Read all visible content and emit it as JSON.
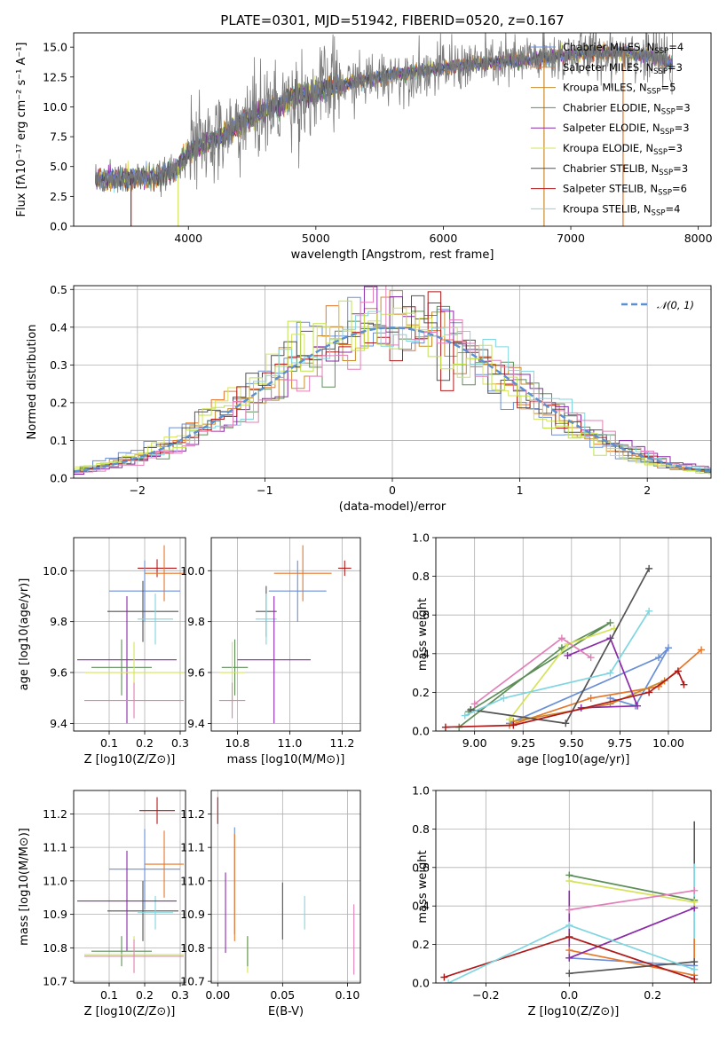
{
  "colors": {
    "Chabrier MILES": "#6a8fd8",
    "Salpeter MILES": "#e5772a",
    "Kroupa MILES": "#c98b2c",
    "Chabrier ELODIE": "#5e8e58",
    "Salpeter ELODIE": "#8b2aa8",
    "Kroupa ELODIE": "#d5e35a",
    "Chabrier STELIB": "#545454",
    "Salpeter STELIB": "#b0191a",
    "Kroupa STELIB": "#7fd6e0",
    "extra_pink": "#e37fb8",
    "extra_lime": "#bfe34a",
    "normal": "#5b8fd0"
  },
  "chart_data": [
    {
      "id": "spectrum",
      "type": "line",
      "title": "PLATE=0301, MJD=51942, FIBERID=0520, z=0.167",
      "xlabel": "wavelength [Angstrom, rest frame]",
      "ylabel": "Flux [fλ10⁻¹⁷ erg cm⁻² s⁻¹ A⁻¹]",
      "xlim": [
        3100,
        8100
      ],
      "ylim": [
        0,
        16.2
      ],
      "xticks": [
        "4000",
        "5000",
        "6000",
        "7000",
        "8000"
      ],
      "yticks": [
        "0.0",
        "2.5",
        "5.0",
        "7.5",
        "10.0",
        "12.5",
        "15.0"
      ],
      "continuum": [
        [
          3270,
          3.9
        ],
        [
          3400,
          4.0
        ],
        [
          3550,
          4.0
        ],
        [
          3700,
          4.1
        ],
        [
          3800,
          4.3
        ],
        [
          3900,
          4.7
        ],
        [
          4000,
          6.2
        ],
        [
          4100,
          6.8
        ],
        [
          4200,
          7.3
        ],
        [
          4300,
          7.7
        ],
        [
          4400,
          8.6
        ],
        [
          4500,
          9.2
        ],
        [
          4600,
          9.6
        ],
        [
          4700,
          10.1
        ],
        [
          4800,
          10.6
        ],
        [
          4900,
          10.9
        ],
        [
          5000,
          11.2
        ],
        [
          5100,
          11.6
        ],
        [
          5200,
          11.8
        ],
        [
          5300,
          12.1
        ],
        [
          5400,
          12.3
        ],
        [
          5500,
          12.5
        ],
        [
          5600,
          12.7
        ],
        [
          5700,
          12.8
        ],
        [
          5800,
          13.0
        ],
        [
          5900,
          13.1
        ],
        [
          6000,
          13.3
        ],
        [
          6100,
          13.4
        ],
        [
          6200,
          13.5
        ],
        [
          6300,
          13.6
        ],
        [
          6400,
          13.7
        ],
        [
          6500,
          13.8
        ],
        [
          6600,
          13.9
        ],
        [
          6700,
          14.0
        ],
        [
          6800,
          14.1
        ],
        [
          6900,
          14.2
        ],
        [
          7000,
          14.4
        ],
        [
          7100,
          14.5
        ],
        [
          7200,
          14.5
        ],
        [
          7300,
          14.6
        ],
        [
          7400,
          14.6
        ],
        [
          7500,
          14.5
        ],
        [
          7600,
          14.3
        ],
        [
          7700,
          14.0
        ],
        [
          7800,
          13.6
        ]
      ],
      "legend": [
        {
          "name": "Chabrier MILES",
          "n": "4"
        },
        {
          "name": "Salpeter MILES",
          "n": "3"
        },
        {
          "name": "Kroupa MILES",
          "n": "5"
        },
        {
          "name": "Chabrier ELODIE",
          "n": "3"
        },
        {
          "name": "Salpeter ELODIE",
          "n": "3"
        },
        {
          "name": "Kroupa ELODIE",
          "n": "3"
        },
        {
          "name": "Chabrier STELIB",
          "n": "3"
        },
        {
          "name": "Salpeter STELIB",
          "n": "6"
        },
        {
          "name": "Kroupa STELIB",
          "n": "4"
        }
      ]
    },
    {
      "id": "residuals",
      "type": "histogram",
      "xlabel": "(data-model)/error",
      "ylabel": "Normed distribution",
      "xlim": [
        -2.5,
        2.5
      ],
      "ylim": [
        0,
        0.51
      ],
      "xticks": [
        "−2",
        "−1",
        "0",
        "1",
        "2"
      ],
      "yticks": [
        "0.0",
        "0.1",
        "0.2",
        "0.3",
        "0.4",
        "0.5"
      ],
      "legend": "𝒩(0, 1)",
      "normal_mean": 0,
      "normal_sigma": 1
    },
    {
      "id": "age_vs_Z",
      "type": "errorbar",
      "xlabel": "Z [log10(Z/Z⊙)]",
      "ylabel": "age  [log10(age/yr)]",
      "xlim": [
        0.0,
        0.315
      ],
      "ylim": [
        9.37,
        10.13
      ],
      "xticks": [
        "0.1",
        "0.2",
        "0.3"
      ],
      "yticks": [
        "9.4",
        "9.6",
        "9.8",
        "10.0"
      ],
      "points": [
        {
          "c": "Salpeter STELIB",
          "x": 0.235,
          "y": 10.01,
          "xe": 0.055,
          "ye": 0.035
        },
        {
          "c": "Salpeter MILES",
          "x": 0.255,
          "y": 9.99,
          "xe": 0.055,
          "ye": 0.11
        },
        {
          "c": "Chabrier MILES",
          "x": 0.2,
          "y": 9.92,
          "xe": 0.1,
          "ye": 0.12
        },
        {
          "c": "Chabrier STELIB",
          "x": 0.195,
          "y": 9.84,
          "xe": 0.1,
          "ye": 0.12
        },
        {
          "c": "Kroupa STELIB",
          "x": 0.23,
          "y": 9.81,
          "xe": 0.05,
          "ye": 0.1
        },
        {
          "c": "Salpeter ELODIE",
          "x": 0.15,
          "y": 9.65,
          "xe": 0.14,
          "ye": 0.25
        },
        {
          "c": "Chabrier ELODIE",
          "x": 0.135,
          "y": 9.62,
          "xe": 0.085,
          "ye": 0.11
        },
        {
          "c": "Kroupa ELODIE",
          "x": 0.17,
          "y": 9.6,
          "xe": 0.14,
          "ye": 0.12
        },
        {
          "c": "extra_pink",
          "x": 0.17,
          "y": 9.49,
          "xe": 0.14,
          "ye": 0.07
        }
      ]
    },
    {
      "id": "age_vs_mass",
      "type": "errorbar",
      "xlabel": "mass [log10(M/M⊙)]",
      "ylabel": "",
      "xlim": [
        10.7,
        11.27
      ],
      "ylim": [
        9.37,
        10.13
      ],
      "xticks": [
        "10.8",
        "11.0",
        "11.2"
      ],
      "yticks": [
        "9.4",
        "9.6",
        "9.8",
        "10.0"
      ],
      "points": [
        {
          "c": "Salpeter STELIB",
          "x": 11.21,
          "y": 10.01,
          "xe": 0.025,
          "ye": 0.03
        },
        {
          "c": "Salpeter MILES",
          "x": 11.05,
          "y": 9.99,
          "xe": 0.11,
          "ye": 0.11
        },
        {
          "c": "Chabrier MILES",
          "x": 11.03,
          "y": 9.92,
          "xe": 0.11,
          "ye": 0.12
        },
        {
          "c": "Chabrier STELIB",
          "x": 10.91,
          "y": 9.84,
          "xe": 0.04,
          "ye": 0.1
        },
        {
          "c": "Kroupa STELIB",
          "x": 10.91,
          "y": 9.81,
          "xe": 0.04,
          "ye": 0.1
        },
        {
          "c": "Salpeter ELODIE",
          "x": 10.94,
          "y": 9.65,
          "xe": 0.14,
          "ye": 0.25
        },
        {
          "c": "Chabrier ELODIE",
          "x": 10.79,
          "y": 9.62,
          "xe": 0.05,
          "ye": 0.11
        },
        {
          "c": "Kroupa ELODIE",
          "x": 10.78,
          "y": 9.6,
          "xe": 0.05,
          "ye": 0.12
        },
        {
          "c": "extra_pink",
          "x": 10.78,
          "y": 9.49,
          "xe": 0.05,
          "ye": 0.07
        }
      ]
    },
    {
      "id": "weight_vs_age",
      "type": "line",
      "xlabel": "age  [log10(age/yr)]",
      "ylabel": "mass weight",
      "xlim": [
        8.8,
        10.22
      ],
      "ylim": [
        0,
        1.0
      ],
      "xticks": [
        "9.00",
        "9.25",
        "9.50",
        "9.75",
        "10.00"
      ],
      "yticks": [
        "0.0",
        "0.2",
        "0.4",
        "0.6",
        "0.8",
        "1.0"
      ],
      "series": [
        {
          "c": "Chabrier MILES",
          "pts": [
            [
              9.18,
              0.04
            ],
            [
              9.95,
              0.38
            ],
            [
              10.0,
              0.43
            ],
            [
              9.83,
              0.13
            ],
            [
              9.7,
              0.17
            ]
          ]
        },
        {
          "c": "Salpeter MILES",
          "pts": [
            [
              9.18,
              0.03
            ],
            [
              9.6,
              0.17
            ],
            [
              9.95,
              0.23
            ],
            [
              10.17,
              0.42
            ]
          ]
        },
        {
          "c": "Kroupa MILES",
          "pts": [
            [
              9.2,
              0.05
            ],
            [
              9.7,
              0.14
            ],
            [
              9.98,
              0.26
            ]
          ]
        },
        {
          "c": "Chabrier ELODIE",
          "pts": [
            [
              8.97,
              0.1
            ],
            [
              9.7,
              0.56
            ],
            [
              9.45,
              0.43
            ],
            [
              8.92,
              0.02
            ]
          ]
        },
        {
          "c": "Salpeter ELODIE",
          "pts": [
            [
              9.48,
              0.39
            ],
            [
              9.7,
              0.48
            ],
            [
              9.84,
              0.13
            ],
            [
              9.55,
              0.12
            ]
          ]
        },
        {
          "c": "Kroupa ELODIE",
          "pts": [
            [
              9.18,
              0.06
            ],
            [
              9.48,
              0.45
            ],
            [
              9.72,
              0.53
            ]
          ]
        },
        {
          "c": "Chabrier STELIB",
          "pts": [
            [
              8.98,
              0.11
            ],
            [
              9.47,
              0.04
            ],
            [
              9.9,
              0.84
            ]
          ]
        },
        {
          "c": "Salpeter STELIB",
          "pts": [
            [
              8.85,
              0.02
            ],
            [
              9.2,
              0.03
            ],
            [
              9.9,
              0.2
            ],
            [
              10.05,
              0.31
            ],
            [
              10.08,
              0.24
            ]
          ]
        },
        {
          "c": "Kroupa STELIB",
          "pts": [
            [
              8.95,
              0.08
            ],
            [
              9.15,
              0.17
            ],
            [
              9.7,
              0.3
            ],
            [
              9.9,
              0.62
            ]
          ]
        },
        {
          "c": "extra_pink",
          "pts": [
            [
              9.0,
              0.14
            ],
            [
              9.45,
              0.48
            ],
            [
              9.6,
              0.38
            ]
          ]
        }
      ]
    },
    {
      "id": "mass_vs_Z",
      "type": "errorbar",
      "xlabel": "Z [log10(Z/Z⊙)]",
      "ylabel": "mass [log10(M/M⊙)]",
      "xlim": [
        0.0,
        0.315
      ],
      "ylim": [
        10.695,
        11.27
      ],
      "xticks": [
        "0.1",
        "0.2",
        "0.3"
      ],
      "yticks": [
        "10.7",
        "10.8",
        "10.9",
        "11.0",
        "11.1",
        "11.2"
      ],
      "points": [
        {
          "c": "Salpeter STELIB",
          "x": 0.235,
          "y": 11.21,
          "xe": 0.05,
          "ye": 0.04
        },
        {
          "c": "Salpeter MILES",
          "x": 0.255,
          "y": 11.05,
          "xe": 0.055,
          "ye": 0.1
        },
        {
          "c": "Chabrier MILES",
          "x": 0.2,
          "y": 11.035,
          "xe": 0.1,
          "ye": 0.12
        },
        {
          "c": "Chabrier STELIB",
          "x": 0.195,
          "y": 10.91,
          "xe": 0.1,
          "ye": 0.09
        },
        {
          "c": "Kroupa STELIB",
          "x": 0.23,
          "y": 10.905,
          "xe": 0.05,
          "ye": 0.05
        },
        {
          "c": "Salpeter ELODIE",
          "x": 0.15,
          "y": 10.94,
          "xe": 0.14,
          "ye": 0.15
        },
        {
          "c": "Chabrier ELODIE",
          "x": 0.135,
          "y": 10.79,
          "xe": 0.085,
          "ye": 0.045
        },
        {
          "c": "Kroupa ELODIE",
          "x": 0.17,
          "y": 10.78,
          "xe": 0.14,
          "ye": 0.055
        },
        {
          "c": "extra_pink",
          "x": 0.17,
          "y": 10.775,
          "xe": 0.14,
          "ye": 0.05
        }
      ]
    },
    {
      "id": "mass_vs_ebv",
      "type": "errorbar",
      "xlabel": "E(B-V)",
      "ylabel": "",
      "xlim": [
        -0.005,
        0.11
      ],
      "ylim": [
        10.695,
        11.27
      ],
      "xticks": [
        "0.00",
        "0.05",
        "0.10"
      ],
      "yticks": [
        "10.7",
        "10.8",
        "10.9",
        "11.0",
        "11.1",
        "11.2"
      ],
      "points": [
        {
          "c": "Salpeter STELIB",
          "x": 0.0,
          "y": 11.21,
          "xe": 0,
          "ye": 0.04
        },
        {
          "c": "Chabrier MILES",
          "x": 0.013,
          "y": 11.0,
          "xe": 0,
          "ye": 0.16
        },
        {
          "c": "Salpeter MILES",
          "x": 0.013,
          "y": 10.98,
          "xe": 0,
          "ye": 0.16
        },
        {
          "c": "Salpeter ELODIE",
          "x": 0.006,
          "y": 10.905,
          "xe": 0,
          "ye": 0.12
        },
        {
          "c": "Kroupa ELODIE",
          "x": 0.023,
          "y": 10.78,
          "xe": 0,
          "ye": 0.055
        },
        {
          "c": "Chabrier ELODIE",
          "x": 0.023,
          "y": 10.79,
          "xe": 0,
          "ye": 0.045
        },
        {
          "c": "Chabrier STELIB",
          "x": 0.05,
          "y": 10.91,
          "xe": 0,
          "ye": 0.085
        },
        {
          "c": "Kroupa STELIB",
          "x": 0.067,
          "y": 10.905,
          "xe": 0,
          "ye": 0.05
        },
        {
          "c": "extra_pink",
          "x": 0.105,
          "y": 10.825,
          "xe": 0,
          "ye": 0.105
        }
      ]
    },
    {
      "id": "weight_vs_Z",
      "type": "line",
      "xlabel": "Z [log10(Z/Z⊙)]",
      "ylabel": "mass weight",
      "xlim": [
        -0.32,
        0.34
      ],
      "ylim": [
        0,
        1.0
      ],
      "xticks": [
        "−0.2",
        "0.0",
        "0.2"
      ],
      "yticks": [
        "0.0",
        "0.2",
        "0.4",
        "0.6",
        "0.8",
        "1.0"
      ],
      "series": [
        {
          "c": "Chabrier MILES",
          "pts": [
            [
              0.0,
              0.13
            ],
            [
              0.3,
              0.09
            ]
          ]
        },
        {
          "c": "Salpeter MILES",
          "pts": [
            [
              0.0,
              0.17
            ],
            [
              0.3,
              0.04
            ]
          ]
        },
        {
          "c": "Chabrier ELODIE",
          "pts": [
            [
              0.0,
              0.56
            ],
            [
              0.3,
              0.43
            ]
          ]
        },
        {
          "c": "Salpeter ELODIE",
          "pts": [
            [
              0.0,
              0.13
            ],
            [
              0.3,
              0.39
            ]
          ]
        },
        {
          "c": "Kroupa ELODIE",
          "pts": [
            [
              0.0,
              0.53
            ],
            [
              0.3,
              0.42
            ]
          ]
        },
        {
          "c": "Chabrier STELIB",
          "pts": [
            [
              0.0,
              0.05
            ],
            [
              0.3,
              0.11
            ]
          ]
        },
        {
          "c": "Salpeter STELIB",
          "pts": [
            [
              -0.3,
              0.03
            ],
            [
              0.0,
              0.24
            ],
            [
              0.3,
              0.02
            ]
          ]
        },
        {
          "c": "Kroupa STELIB",
          "pts": [
            [
              -0.29,
              0.0
            ],
            [
              0.0,
              0.3
            ],
            [
              0.3,
              0.07
            ]
          ]
        },
        {
          "c": "extra_pink",
          "pts": [
            [
              0.0,
              0.38
            ],
            [
              0.3,
              0.48
            ]
          ]
        }
      ],
      "verticals": [
        {
          "c": "Chabrier STELIB",
          "x": 0.3,
          "y1": 0.02,
          "y2": 0.84
        },
        {
          "c": "Kroupa STELIB",
          "x": 0.3,
          "y1": 0.05,
          "y2": 0.62
        },
        {
          "c": "Salpeter ELODIE",
          "x": 0.0,
          "y1": 0.12,
          "y2": 0.48
        },
        {
          "c": "Salpeter MILES",
          "x": 0.3,
          "y1": 0.03,
          "y2": 0.23
        }
      ]
    }
  ]
}
